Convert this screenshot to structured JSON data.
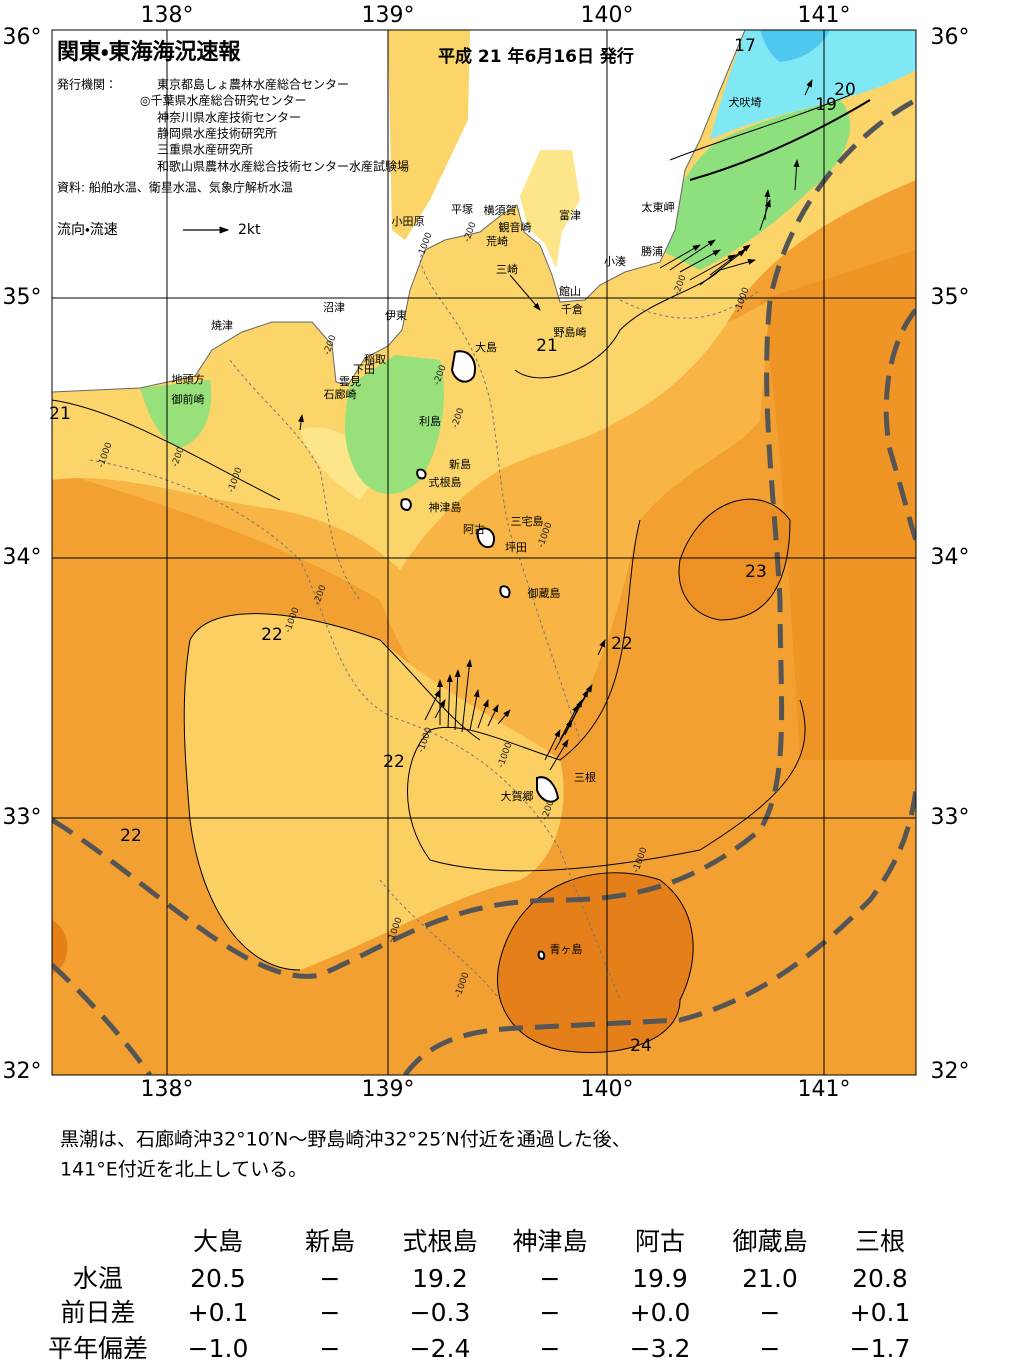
{
  "header": {
    "title": "関東・東海海況速報",
    "date": "平成 21 年6月16日 発行",
    "agencies_label": "発行機関：",
    "agencies": [
      "東京都島しょ農林水産総合センター",
      "◎千葉県水産総合研究センター",
      "神奈川県水産技術センター",
      "静岡県水産技術研究所",
      "三重県水産研究所",
      "和歌山県農林水産総合技術センター水産試験場"
    ],
    "source": "資料: 船舶水温、衛星水温、気象庁解析水温",
    "legend_label": "流向・流速",
    "legend_scale": "2kt"
  },
  "map": {
    "lon_labels": [
      "138°",
      "139°",
      "140°",
      "141°"
    ],
    "lat_labels": [
      "36°",
      "35°",
      "34°",
      "33°",
      "32°"
    ],
    "places": [
      "小田原",
      "平塚",
      "横須賀",
      "観音崎",
      "荒崎",
      "富津",
      "太東岬",
      "勝浦",
      "小湊",
      "三崎",
      "館山",
      "千倉",
      "野島崎",
      "犬吠埼",
      "沼津",
      "伊東",
      "稲取",
      "下田",
      "雲見",
      "石廊崎",
      "焼津",
      "地頭方",
      "御前崎",
      "大島",
      "利島",
      "新島",
      "式根島",
      "神津島",
      "三宅島",
      "阿古",
      "坪田",
      "御蔵島",
      "三根",
      "大賀郷",
      "青ヶ島"
    ],
    "isotherm_labels": [
      "17",
      "20",
      "19",
      "21",
      "21",
      "22",
      "22",
      "22",
      "22",
      "23",
      "24"
    ],
    "depth_labels": [
      "-1000",
      "-1000",
      "-1000",
      "-1000",
      "-1000",
      "-1000",
      "-1000",
      "-1000",
      "-1000",
      "-1000",
      "-1000",
      "-200",
      "-200",
      "-200",
      "-200",
      "-200",
      "-200",
      "-200",
      "-200"
    ]
  },
  "note": {
    "lines": [
      "黒潮は、石廊崎沖32°10′N～野島崎沖32°25′N付近を通過した後、",
      "141°E付近を北上している。"
    ]
  },
  "table": {
    "columns": [
      "大島",
      "新島",
      "式根島",
      "神津島",
      "阿古",
      "御蔵島",
      "三根"
    ],
    "rows": [
      {
        "label": "水温",
        "cells": [
          "20.5",
          "−",
          "19.2",
          "−",
          "19.9",
          "21.0",
          "20.8"
        ]
      },
      {
        "label": "前日差",
        "cells": [
          "+0.1",
          "−",
          "−0.3",
          "−",
          "+0.0",
          "−",
          "+0.1"
        ]
      },
      {
        "label": "平年偏差",
        "cells": [
          "−1.0",
          "−",
          "−2.4",
          "−",
          "−3.2",
          "−",
          "−1.7"
        ]
      }
    ]
  }
}
